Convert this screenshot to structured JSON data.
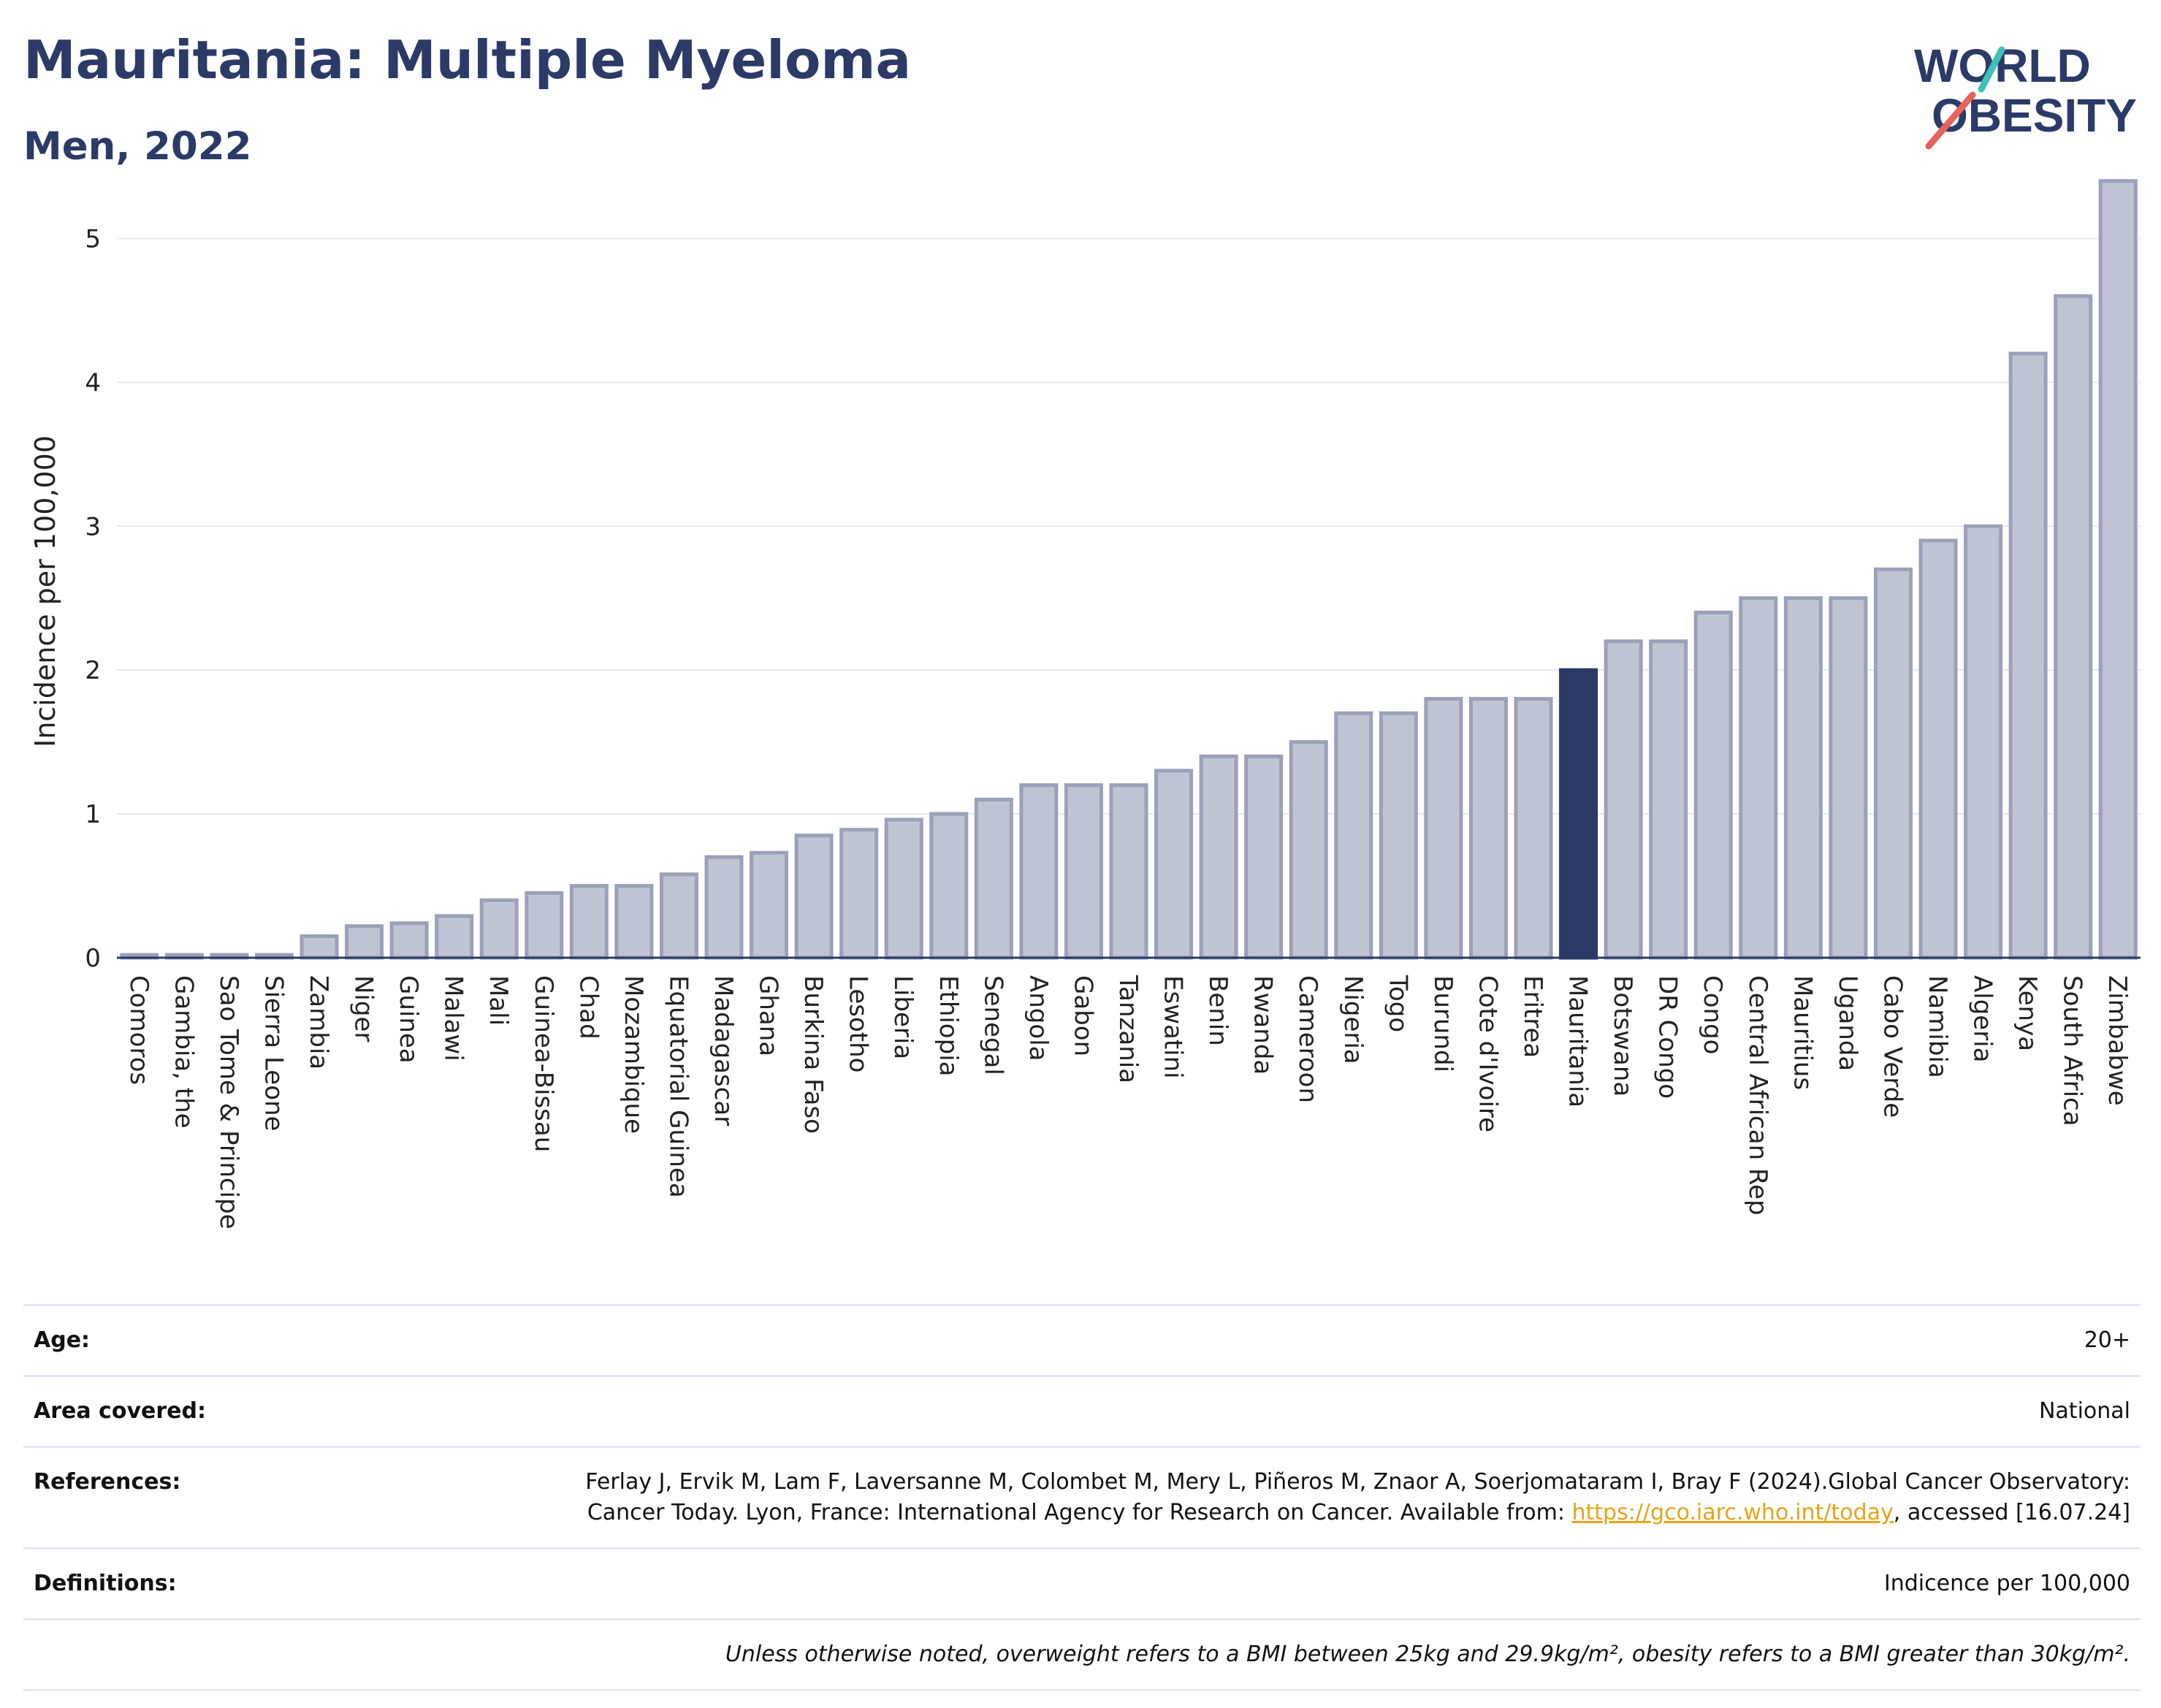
{
  "title": "Mauritania: Multiple Myeloma",
  "subtitle": "Men, 2022",
  "logo": {
    "line1": "WORLD",
    "line2": "OBESITY",
    "accent_teal": "#3fc1b9",
    "accent_red": "#e8625b",
    "text_color": "#2b3a67"
  },
  "colors": {
    "bar_default": "#bfc4d3",
    "bar_stroke": "#9aa1b8",
    "bar_highlight": "#2b3a67",
    "grid": "#e6e8ef",
    "axis": "#2b3a67"
  },
  "chart_data": {
    "type": "bar",
    "ylabel": "Incidence per 100,000",
    "ylim": [
      0,
      5.5
    ],
    "yticks": [
      "0",
      "1",
      "2",
      "3",
      "4",
      "5"
    ],
    "highlight": "Mauritania",
    "categories": [
      "Comoros",
      "Gambia, the",
      "Sao Tome & Principe",
      "Sierra Leone",
      "Zambia",
      "Niger",
      "Guinea",
      "Malawi",
      "Mali",
      "Guinea-Bissau",
      "Chad",
      "Mozambique",
      "Equatorial Guinea",
      "Madagascar",
      "Ghana",
      "Burkina Faso",
      "Lesotho",
      "Liberia",
      "Ethiopia",
      "Senegal",
      "Angola",
      "Gabon",
      "Tanzania",
      "Eswatini",
      "Benin",
      "Rwanda",
      "Cameroon",
      "Nigeria",
      "Togo",
      "Burundi",
      "Cote d'Ivoire",
      "Eritrea",
      "Mauritania",
      "Botswana",
      "DR Congo",
      "Congo",
      "Central African Rep",
      "Mauritius",
      "Uganda",
      "Cabo Verde",
      "Namibia",
      "Algeria",
      "Kenya",
      "South Africa",
      "Zimbabwe"
    ],
    "values": [
      0.02,
      0.02,
      0.02,
      0.02,
      0.15,
      0.22,
      0.24,
      0.29,
      0.4,
      0.45,
      0.5,
      0.5,
      0.58,
      0.7,
      0.73,
      0.85,
      0.89,
      0.96,
      1.0,
      1.1,
      1.2,
      1.2,
      1.2,
      1.3,
      1.4,
      1.4,
      1.5,
      1.7,
      1.7,
      1.8,
      1.8,
      1.8,
      2.0,
      2.2,
      2.2,
      2.4,
      2.5,
      2.5,
      2.5,
      2.7,
      2.9,
      3.0,
      4.2,
      4.6,
      5.4
    ]
  },
  "info": {
    "age_label": "Age:",
    "age_value": "20+",
    "area_label": "Area covered:",
    "area_value": "National",
    "ref_label": "References:",
    "ref_text_1": "Ferlay J, Ervik M, Lam F, Laversanne M, Colombet M, Mery L, Piñeros M, Znaor A, Soerjomataram I, Bray F (2024).Global Cancer Observatory: Cancer Today. Lyon, France: International Agency for Research on Cancer. Available from: ",
    "ref_link": "https://gco.iarc.who.int/today",
    "ref_text_2": ", accessed [16.07.24]",
    "def_label": "Definitions:",
    "def_value": "Indicence per 100,000",
    "note": "Unless otherwise noted, overweight refers to a BMI between 25kg and 29.9kg/m², obesity refers to a BMI greater than 30kg/m²."
  }
}
